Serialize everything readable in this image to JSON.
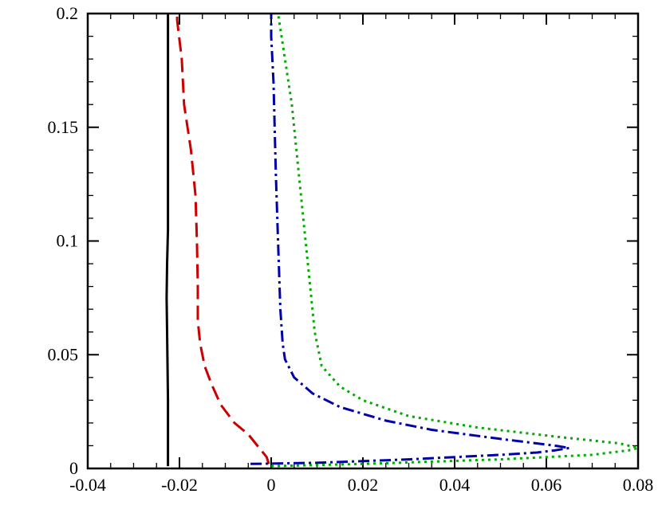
{
  "chart_data": {
    "type": "line",
    "title": "",
    "xlabel": "",
    "ylabel": "",
    "xlim": [
      -0.04,
      0.08
    ],
    "ylim": [
      0,
      0.2
    ],
    "x_ticks": [
      -0.04,
      -0.02,
      0,
      0.02,
      0.04,
      0.06,
      0.08
    ],
    "x_tick_labels": [
      "-0.04",
      "-0.02",
      "0",
      "0.02",
      "0.04",
      "0.06",
      "0.08"
    ],
    "y_ticks": [
      0,
      0.05,
      0.1,
      0.15,
      0.2
    ],
    "y_tick_labels": [
      "0",
      "0.05",
      "0.1",
      "0.15",
      "0.2"
    ],
    "grid": false,
    "legend": "none",
    "series": [
      {
        "color": "#000000",
        "dash": "solid",
        "points": [
          [
            -0.0225,
            0.001
          ],
          [
            -0.0225,
            0.03
          ],
          [
            -0.0227,
            0.06
          ],
          [
            -0.0228,
            0.075
          ],
          [
            -0.0227,
            0.09
          ],
          [
            -0.0225,
            0.105
          ],
          [
            -0.0225,
            0.15
          ],
          [
            -0.0225,
            0.2
          ]
        ]
      },
      {
        "color": "#cc0000",
        "dash": "long-dash",
        "points": [
          [
            -0.0005,
            0.002
          ],
          [
            -0.001,
            0.005
          ],
          [
            -0.003,
            0.01
          ],
          [
            -0.005,
            0.015
          ],
          [
            -0.008,
            0.02
          ],
          [
            -0.011,
            0.028
          ],
          [
            -0.013,
            0.037
          ],
          [
            -0.0145,
            0.045
          ],
          [
            -0.0155,
            0.055
          ],
          [
            -0.016,
            0.065
          ],
          [
            -0.016,
            0.08
          ],
          [
            -0.0162,
            0.1
          ],
          [
            -0.0165,
            0.12
          ],
          [
            -0.0175,
            0.14
          ],
          [
            -0.019,
            0.16
          ],
          [
            -0.0195,
            0.18
          ],
          [
            -0.0205,
            0.197
          ],
          [
            -0.0205,
            0.2
          ]
        ]
      },
      {
        "color": "#0000aa",
        "dash": "dash-dot",
        "points": [
          [
            -0.0045,
            0.002
          ],
          [
            0.01,
            0.0025
          ],
          [
            0.03,
            0.004
          ],
          [
            0.05,
            0.006
          ],
          [
            0.058,
            0.007
          ],
          [
            0.062,
            0.008
          ],
          [
            0.065,
            0.009
          ],
          [
            0.062,
            0.01
          ],
          [
            0.05,
            0.013
          ],
          [
            0.035,
            0.017
          ],
          [
            0.025,
            0.021
          ],
          [
            0.015,
            0.027
          ],
          [
            0.009,
            0.033
          ],
          [
            0.005,
            0.04
          ],
          [
            0.003,
            0.048
          ],
          [
            0.0025,
            0.055
          ],
          [
            0.002,
            0.07
          ],
          [
            0.0015,
            0.1
          ],
          [
            0.001,
            0.13
          ],
          [
            0.0005,
            0.17
          ],
          [
            0.0,
            0.19
          ],
          [
            0.0,
            0.2
          ]
        ]
      },
      {
        "color": "#00aa00",
        "dash": "dotted",
        "points": [
          [
            0.0,
            0.001
          ],
          [
            0.02,
            0.002
          ],
          [
            0.05,
            0.004
          ],
          [
            0.07,
            0.006
          ],
          [
            0.078,
            0.008
          ],
          [
            0.08,
            0.009
          ],
          [
            0.076,
            0.011
          ],
          [
            0.062,
            0.014
          ],
          [
            0.045,
            0.018
          ],
          [
            0.03,
            0.023
          ],
          [
            0.02,
            0.03
          ],
          [
            0.015,
            0.036
          ],
          [
            0.011,
            0.045
          ],
          [
            0.0095,
            0.06
          ],
          [
            0.0085,
            0.08
          ],
          [
            0.0075,
            0.1
          ],
          [
            0.006,
            0.13
          ],
          [
            0.0045,
            0.16
          ],
          [
            0.003,
            0.18
          ],
          [
            0.0015,
            0.2
          ]
        ]
      }
    ]
  }
}
